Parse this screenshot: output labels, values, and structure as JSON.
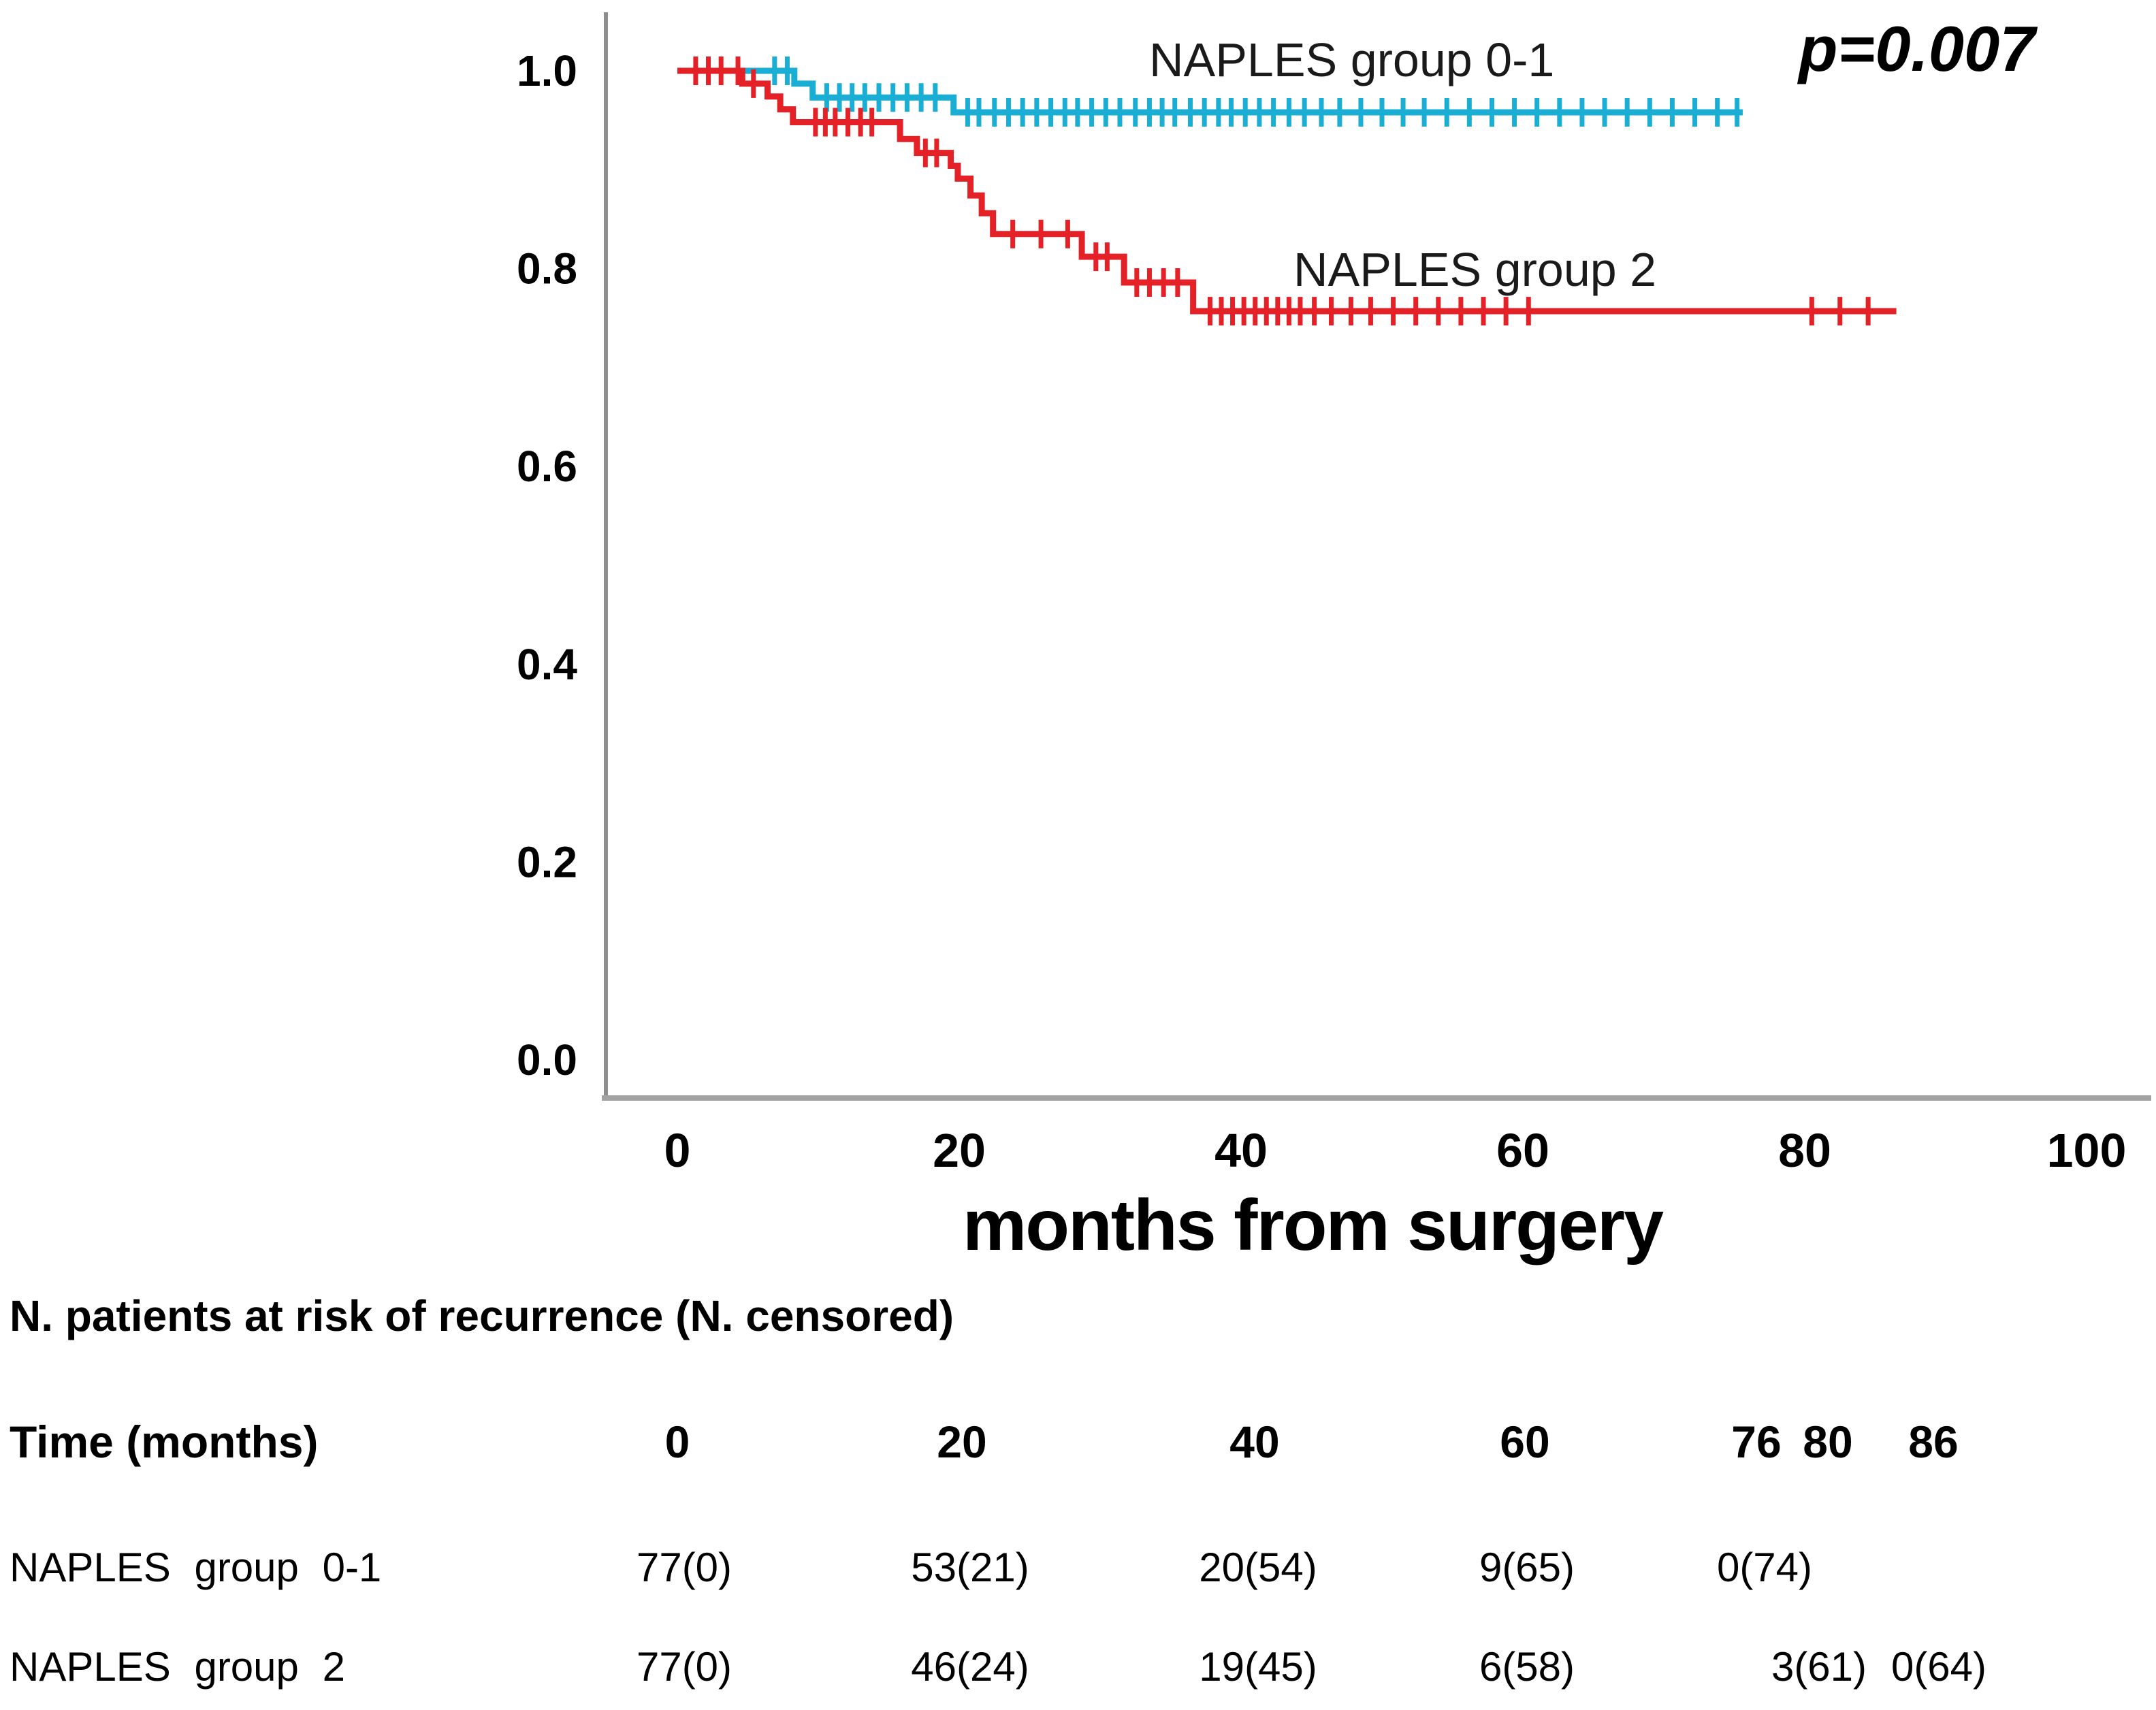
{
  "chart_data": {
    "type": "line",
    "subtype": "kaplan-meier-step",
    "title": "",
    "xlabel": "months from surgery",
    "ylabel": "",
    "xlim": [
      0,
      100
    ],
    "ylim": [
      0.0,
      1.0
    ],
    "p_value": "p=0.007",
    "x_axis": {
      "ticks": [
        0,
        20,
        40,
        60,
        80,
        100
      ]
    },
    "y_axis": {
      "ticks": [
        "1.0",
        "0.8",
        "0.6",
        "0.4",
        "0.2",
        "0.0"
      ]
    },
    "grid": "off",
    "legend_position": "labels-on-plot",
    "series": [
      {
        "name": "NAPLES group 0-1",
        "color": "#1BAED4",
        "steps": [
          [
            0,
            1.0
          ],
          [
            8.3,
            0.987
          ],
          [
            9.6,
            0.973
          ],
          [
            19.6,
            0.958
          ]
        ],
        "end_time": 75.6,
        "censor_times": [
          6.9,
          7.8,
          10.6,
          11.5,
          12.4,
          13.3,
          14.3,
          15.3,
          16.3,
          17.3,
          18.3,
          20.6,
          21.4,
          22.5,
          23.5,
          24.5,
          25.5,
          26.5,
          27.5,
          28.4,
          29.4,
          30.4,
          31.4,
          32.5,
          33.5,
          34.4,
          35.3,
          36.4,
          37.4,
          38.4,
          39.3,
          40.3,
          41.3,
          42.3,
          43.4,
          44.5,
          45.7,
          47,
          48.5,
          50,
          51.5,
          53,
          54.6,
          56.2,
          57.8,
          59.4,
          61,
          62.6,
          64.2,
          65.8,
          67.4,
          69,
          70.6,
          72.2,
          73.8,
          75.2
        ]
      },
      {
        "name": "NAPLES group 2",
        "color": "#E32126",
        "steps": [
          [
            0,
            1.0
          ],
          [
            4.6,
            0.987
          ],
          [
            6.4,
            0.974
          ],
          [
            7.3,
            0.961
          ],
          [
            8.2,
            0.948
          ],
          [
            15.8,
            0.931
          ],
          [
            17,
            0.917
          ],
          [
            19.4,
            0.904
          ],
          [
            19.9,
            0.891
          ],
          [
            20.8,
            0.874
          ],
          [
            21.6,
            0.856
          ],
          [
            22.4,
            0.835
          ],
          [
            28.7,
            0.812
          ],
          [
            31.7,
            0.786
          ],
          [
            36.6,
            0.757
          ]
        ],
        "end_time": 86.5,
        "censor_times": [
          1.3,
          2.2,
          3.1,
          4.3,
          5.4,
          9.8,
          10.5,
          11.2,
          12.1,
          13,
          13.8,
          17.6,
          18.4,
          23.8,
          25.8,
          27.7,
          29.7,
          30.5,
          32.6,
          33.5,
          34.5,
          35.5,
          37.8,
          38.6,
          39.4,
          40.2,
          41,
          41.8,
          42.6,
          43.4,
          44.2,
          45.2,
          46.4,
          47.8,
          49.2,
          50.8,
          52.4,
          54,
          55.6,
          57.2,
          58.8,
          60.4,
          80.5,
          82.5,
          84.5
        ]
      }
    ]
  },
  "risk_table": {
    "heading": "N. patients at risk of recurrence (N. censored)",
    "time_label": "Time (months)",
    "time_values": [
      "0",
      "20",
      "40",
      "60",
      "76",
      "80",
      "86"
    ],
    "rows": [
      {
        "label": "NAPLES group 0-1",
        "values": [
          "77(0)",
          "53(21)",
          "20(54)",
          "9(65)",
          "0(74)"
        ]
      },
      {
        "label": "NAPLES group 2",
        "values": [
          "77(0)",
          "46(24)",
          "19(45)",
          "6(58)",
          "3(61)",
          "0(64)"
        ]
      }
    ]
  }
}
